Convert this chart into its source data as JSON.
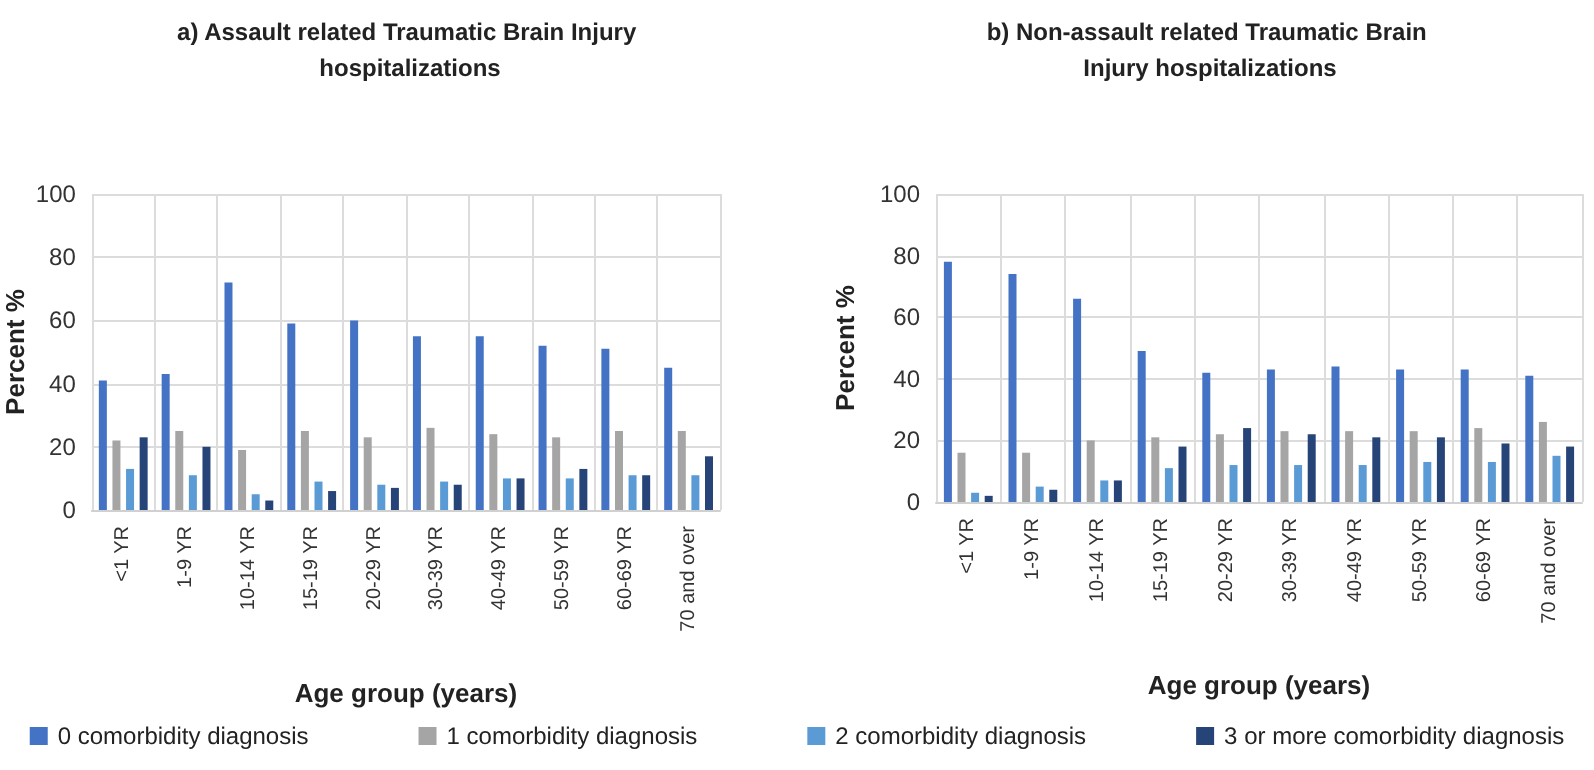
{
  "chart_data": [
    {
      "type": "bar",
      "title": "a) Assault related Traumatic Brain Injury hospitalizations",
      "xlabel": "Age group (years)",
      "ylabel": "Percent %",
      "categories": [
        "<1 YR",
        "1-9 YR",
        "10-14 YR",
        "15-19 YR",
        "20-29 YR",
        "30-39 YR",
        "40-49 YR",
        "50-59 YR",
        "60-69 YR",
        "70 and over"
      ],
      "series": [
        {
          "name": "0 comorbidity diagnosis",
          "color": "#4472c4",
          "values": [
            41,
            43,
            72,
            59,
            60,
            55,
            55,
            52,
            51,
            45
          ]
        },
        {
          "name": "1 comorbidity diagnosis",
          "color": "#a5a5a5",
          "values": [
            22,
            25,
            19,
            25,
            23,
            26,
            24,
            23,
            25,
            25
          ]
        },
        {
          "name": "2 comorbidity diagnosis",
          "color": "#5b9bd5",
          "values": [
            13,
            11,
            5,
            9,
            8,
            9,
            10,
            10,
            11,
            11
          ]
        },
        {
          "name": "3 or more comorbidity diagnosis",
          "color": "#264478",
          "values": [
            23,
            20,
            3,
            6,
            7,
            8,
            10,
            13,
            11,
            17
          ]
        }
      ],
      "ylim": [
        0,
        100
      ],
      "yticks": [
        0,
        20,
        40,
        60,
        80,
        100
      ],
      "grid": true,
      "legend": "bottom"
    },
    {
      "type": "bar",
      "title": "b) Non-assault related Traumatic Brain Injury hospitalizations",
      "xlabel": "Age group (years)",
      "ylabel": "Percent %",
      "categories": [
        "<1 YR",
        "1-9 YR",
        "10-14 YR",
        "15-19 YR",
        "20-29 YR",
        "30-39 YR",
        "40-49 YR",
        "50-59 YR",
        "60-69 YR",
        "70 and over"
      ],
      "series": [
        {
          "color": "#4472c4",
          "values": [
            78,
            74,
            66,
            49,
            42,
            43,
            44,
            43,
            43,
            41
          ]
        },
        {
          "color": "#a5a5a5",
          "values": [
            16,
            16,
            20,
            21,
            22,
            23,
            23,
            23,
            24,
            26
          ]
        },
        {
          "color": "#5b9bd5",
          "values": [
            3,
            5,
            7,
            11,
            12,
            12,
            12,
            13,
            13,
            15
          ]
        },
        {
          "color": "#264478",
          "values": [
            2,
            4,
            7,
            18,
            24,
            22,
            21,
            21,
            19,
            18
          ]
        }
      ],
      "ylim": [
        0,
        100
      ],
      "yticks": [
        0,
        20,
        40,
        60,
        80,
        100
      ],
      "grid": true
    }
  ]
}
